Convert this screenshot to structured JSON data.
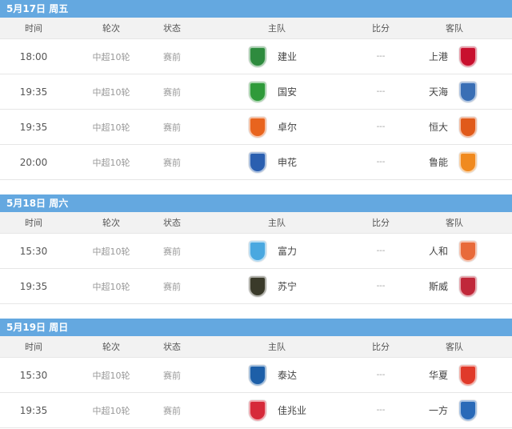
{
  "columns": [
    "时间",
    "轮次",
    "状态",
    "主队",
    "比分",
    "客队"
  ],
  "sections": [
    {
      "day": "5月17日 周五",
      "matches": [
        {
          "time": "18:00",
          "round": "中超10轮",
          "status": "赛前",
          "home": "建业",
          "home_color": "#2e8b3e",
          "score": "---",
          "away": "上港",
          "away_color": "#c8102e"
        },
        {
          "time": "19:35",
          "round": "中超10轮",
          "status": "赛前",
          "home": "国安",
          "home_color": "#2f9a3a",
          "score": "---",
          "away": "天海",
          "away_color": "#3a6fb5"
        },
        {
          "time": "19:35",
          "round": "中超10轮",
          "status": "赛前",
          "home": "卓尔",
          "home_color": "#e8641e",
          "score": "---",
          "away": "恒大",
          "away_color": "#e05a1a"
        },
        {
          "time": "20:00",
          "round": "中超10轮",
          "status": "赛前",
          "home": "申花",
          "home_color": "#2a5fb0",
          "score": "---",
          "away": "鲁能",
          "away_color": "#f08a1f"
        }
      ]
    },
    {
      "day": "5月18日 周六",
      "matches": [
        {
          "time": "15:30",
          "round": "中超10轮",
          "status": "赛前",
          "home": "富力",
          "home_color": "#4aa8e0",
          "score": "---",
          "away": "人和",
          "away_color": "#e86a3a"
        },
        {
          "time": "19:35",
          "round": "中超10轮",
          "status": "赛前",
          "home": "苏宁",
          "home_color": "#3a3a2a",
          "score": "---",
          "away": "斯威",
          "away_color": "#c0283a"
        }
      ]
    },
    {
      "day": "5月19日 周日",
      "matches": [
        {
          "time": "15:30",
          "round": "中超10轮",
          "status": "赛前",
          "home": "泰达",
          "home_color": "#1d5fa8",
          "score": "---",
          "away": "华夏",
          "away_color": "#e03a2a"
        },
        {
          "time": "19:35",
          "round": "中超10轮",
          "status": "赛前",
          "home": "佳兆业",
          "home_color": "#d62a3a",
          "score": "---",
          "away": "一方",
          "away_color": "#2a6ab8"
        }
      ]
    }
  ]
}
